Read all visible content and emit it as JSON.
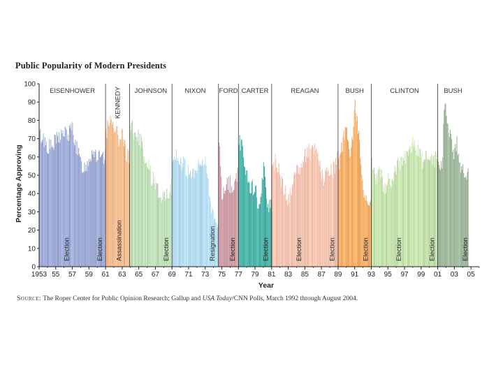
{
  "chart_data": {
    "type": "bar",
    "title": "Public Popularity of Modern Presidents",
    "xlabel": "Year",
    "ylabel": "Percentage Approving",
    "ylim": [
      0,
      100
    ],
    "xlim": [
      1953,
      2006
    ],
    "y_ticks": [
      0,
      10,
      20,
      30,
      40,
      50,
      60,
      70,
      80,
      90,
      100
    ],
    "x_ticks": [
      {
        "year": 1953,
        "label": "1953"
      },
      {
        "year": 1955,
        "label": "55"
      },
      {
        "year": 1957,
        "label": "57"
      },
      {
        "year": 1959,
        "label": "59"
      },
      {
        "year": 1961,
        "label": "61"
      },
      {
        "year": 1963,
        "label": "63"
      },
      {
        "year": 1965,
        "label": "65"
      },
      {
        "year": 1967,
        "label": "67"
      },
      {
        "year": 1969,
        "label": "69"
      },
      {
        "year": 1971,
        "label": "71"
      },
      {
        "year": 1973,
        "label": "73"
      },
      {
        "year": 1975,
        "label": "75"
      },
      {
        "year": 1977,
        "label": "77"
      },
      {
        "year": 1979,
        "label": "79"
      },
      {
        "year": 1981,
        "label": "81"
      },
      {
        "year": 1983,
        "label": "83"
      },
      {
        "year": 1985,
        "label": "85"
      },
      {
        "year": 1987,
        "label": "87"
      },
      {
        "year": 1989,
        "label": "89"
      },
      {
        "year": 1991,
        "label": "91"
      },
      {
        "year": 1993,
        "label": "93"
      },
      {
        "year": 1995,
        "label": "95"
      },
      {
        "year": 1997,
        "label": "97"
      },
      {
        "year": 1999,
        "label": "99"
      },
      {
        "year": 2001,
        "label": "01"
      },
      {
        "year": 2003,
        "label": "03"
      },
      {
        "year": 2005,
        "label": "05"
      }
    ],
    "presidencies": [
      {
        "name": "EISENHOWER",
        "start": 1953.0,
        "end": 1961.0,
        "color": "#8f9fd6",
        "label": "EISENHOWER",
        "vertical_label": false
      },
      {
        "name": "KENNEDY",
        "start": 1961.0,
        "end": 1963.9,
        "color": "#f6b27b",
        "label": "KENNEDY",
        "vertical_label": true
      },
      {
        "name": "JOHNSON",
        "start": 1963.9,
        "end": 1969.0,
        "color": "#b8e0b0",
        "label": "JOHNSON",
        "vertical_label": false
      },
      {
        "name": "NIXON",
        "start": 1969.0,
        "end": 1974.6,
        "color": "#a9dcf4",
        "label": "NIXON",
        "vertical_label": false
      },
      {
        "name": "FORD",
        "start": 1974.6,
        "end": 1977.0,
        "color": "#c98a96",
        "label": "FORD",
        "vertical_label": false
      },
      {
        "name": "CARTER",
        "start": 1977.0,
        "end": 1981.0,
        "color": "#27a99a",
        "label": "CARTER",
        "vertical_label": false
      },
      {
        "name": "REAGAN",
        "start": 1981.0,
        "end": 1989.0,
        "color": "#f6bba3",
        "label": "REAGAN",
        "vertical_label": false
      },
      {
        "name": "BUSH",
        "start": 1989.0,
        "end": 1993.0,
        "color": "#f7a24a",
        "label": "BUSH",
        "vertical_label": false
      },
      {
        "name": "CLINTON",
        "start": 1993.0,
        "end": 2001.0,
        "color": "#bfe3a1",
        "label": "CLINTON",
        "vertical_label": false
      },
      {
        "name": "BUSH",
        "start": 2001.0,
        "end": 2004.7,
        "color": "#8fae8c",
        "label": "BUSH",
        "vertical_label": false
      }
    ],
    "series": [
      {
        "name": "EISENHOWER",
        "x": [
          1953.0,
          1953.5,
          1954.0,
          1954.5,
          1955.0,
          1955.5,
          1956.0,
          1956.5,
          1957.0,
          1957.5,
          1958.0,
          1958.5,
          1959.0,
          1959.5,
          1960.0,
          1960.5,
          1960.95
        ],
        "values": [
          72,
          70,
          66,
          65,
          69,
          72,
          73,
          72,
          76,
          64,
          56,
          54,
          60,
          64,
          60,
          58,
          59
        ]
      },
      {
        "name": "KENNEDY",
        "x": [
          1961.05,
          1961.5,
          1962.0,
          1962.5,
          1963.0,
          1963.5,
          1963.85
        ],
        "values": [
          74,
          80,
          79,
          70,
          76,
          61,
          58
        ]
      },
      {
        "name": "JOHNSON",
        "x": [
          1963.95,
          1964.5,
          1965.0,
          1965.5,
          1966.0,
          1966.5,
          1967.0,
          1967.5,
          1968.0,
          1968.5,
          1968.95
        ],
        "values": [
          78,
          74,
          70,
          64,
          56,
          48,
          46,
          39,
          41,
          40,
          44
        ]
      },
      {
        "name": "NIXON",
        "x": [
          1969.05,
          1969.5,
          1970.0,
          1970.5,
          1971.0,
          1971.5,
          1972.0,
          1972.5,
          1973.0,
          1973.5,
          1974.0,
          1974.55
        ],
        "values": [
          59,
          63,
          56,
          55,
          50,
          49,
          53,
          56,
          62,
          35,
          27,
          24
        ]
      },
      {
        "name": "FORD",
        "x": [
          1974.65,
          1975.0,
          1975.5,
          1976.0,
          1976.5,
          1976.95
        ],
        "values": [
          71,
          39,
          46,
          45,
          45,
          53
        ]
      },
      {
        "name": "CARTER",
        "x": [
          1977.05,
          1977.5,
          1978.0,
          1978.5,
          1979.0,
          1979.5,
          1980.0,
          1980.5,
          1980.95
        ],
        "values": [
          71,
          62,
          51,
          43,
          42,
          30,
          53,
          34,
          34
        ]
      },
      {
        "name": "REAGAN",
        "x": [
          1981.05,
          1981.5,
          1982.0,
          1982.5,
          1983.0,
          1983.5,
          1984.0,
          1984.5,
          1985.0,
          1985.5,
          1986.0,
          1986.5,
          1987.0,
          1987.5,
          1988.0,
          1988.5,
          1988.95
        ],
        "values": [
          51,
          60,
          48,
          42,
          37,
          43,
          54,
          55,
          60,
          63,
          64,
          63,
          48,
          50,
          51,
          54,
          63
        ]
      },
      {
        "name": "BUSH",
        "x": [
          1989.05,
          1989.5,
          1990.0,
          1990.5,
          1991.0,
          1991.5,
          1992.0,
          1992.5,
          1992.95
        ],
        "values": [
          56,
          68,
          76,
          60,
          88,
          71,
          42,
          32,
          37
        ]
      },
      {
        "name": "CLINTON",
        "x": [
          1993.05,
          1993.5,
          1994.0,
          1994.5,
          1995.0,
          1995.5,
          1996.0,
          1996.5,
          1997.0,
          1997.5,
          1998.0,
          1998.5,
          1999.0,
          1999.5,
          2000.0,
          2000.5,
          2000.95
        ],
        "values": [
          58,
          45,
          54,
          42,
          47,
          47,
          54,
          57,
          60,
          60,
          67,
          64,
          58,
          60,
          59,
          58,
          60
        ]
      },
      {
        "name": "BUSH",
        "x": [
          2001.05,
          2001.5,
          2001.75,
          2002.0,
          2002.5,
          2003.0,
          2003.25,
          2003.5,
          2004.0,
          2004.5,
          2004.65
        ],
        "values": [
          57,
          56,
          90,
          84,
          72,
          60,
          71,
          59,
          52,
          48,
          49
        ]
      }
    ],
    "annotations": [
      {
        "text": "Election",
        "year": 1956.9
      },
      {
        "text": "Election",
        "year": 1960.9
      },
      {
        "text": "Assassination",
        "year": 1963.9
      },
      {
        "text": "Election",
        "year": 1968.9
      },
      {
        "text": "Resignation",
        "year": 1974.6
      },
      {
        "text": "Election",
        "year": 1976.9
      },
      {
        "text": "Election",
        "year": 1980.9
      },
      {
        "text": "Election",
        "year": 1984.9
      },
      {
        "text": "Election",
        "year": 1988.9
      },
      {
        "text": "Election",
        "year": 1992.9
      },
      {
        "text": "Election",
        "year": 1996.9
      },
      {
        "text": "Election",
        "year": 2000.9
      },
      {
        "text": "Election",
        "year": 2004.9
      }
    ],
    "grid": false
  },
  "source_note": {
    "label": "Source:",
    "text_before": "The Roper Center for Public Opinion Research; Gallup and",
    "italic": "USA Today",
    "text_after": "/CNN Polls, March 1992 through August 2004."
  }
}
